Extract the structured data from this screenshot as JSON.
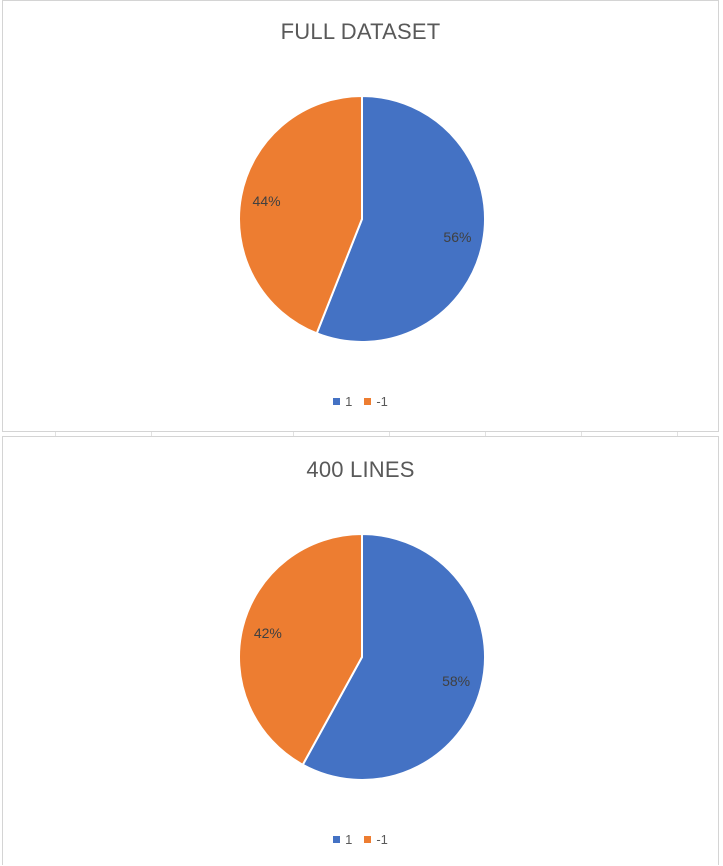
{
  "chart_data": [
    {
      "type": "pie",
      "title": "FULL DATASET",
      "categories": [
        "1",
        "-1"
      ],
      "values": [
        56,
        44
      ],
      "data_labels": [
        "56%",
        "44%"
      ],
      "colors": [
        "#4472c4",
        "#ed7d31"
      ],
      "legend_placement": "bottom"
    },
    {
      "type": "pie",
      "title": "400 LINES",
      "categories": [
        "1",
        "-1"
      ],
      "values": [
        58,
        42
      ],
      "data_labels": [
        "58%",
        "42%"
      ],
      "colors": [
        "#4472c4",
        "#ed7d31"
      ],
      "legend_placement": "bottom"
    }
  ]
}
